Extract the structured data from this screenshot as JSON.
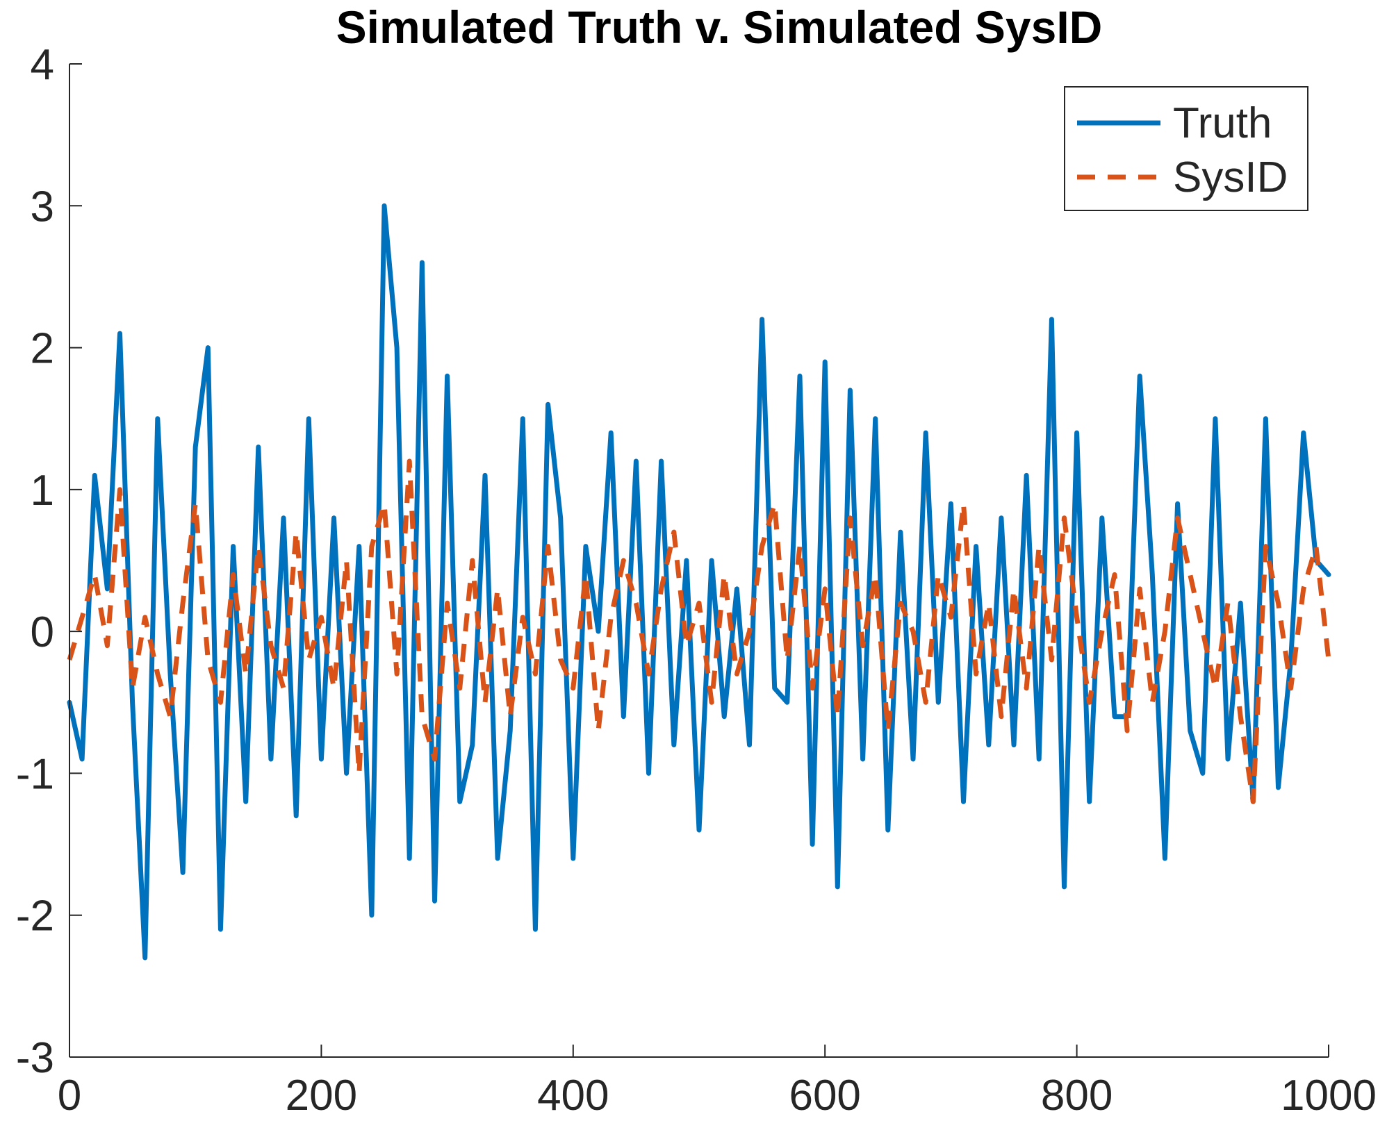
{
  "chart_data": {
    "type": "line",
    "title": "Simulated Truth v. Simulated SysID",
    "xlabel": "",
    "ylabel": "",
    "xlim": [
      0,
      1000
    ],
    "ylim": [
      -3,
      4
    ],
    "xticks": [
      0,
      200,
      400,
      600,
      800,
      1000
    ],
    "yticks": [
      -3,
      -2,
      -1,
      0,
      1,
      2,
      3,
      4
    ],
    "xtick_labels": [
      "0",
      "200",
      "400",
      "600",
      "800",
      "1000"
    ],
    "ytick_labels": [
      "-3",
      "-2",
      "-1",
      "0",
      "1",
      "2",
      "3",
      "4"
    ],
    "grid": false,
    "legend_position": "top-right",
    "series": [
      {
        "name": "Truth",
        "color": "#0072BD",
        "style": "solid",
        "x": [
          0,
          10,
          20,
          30,
          40,
          50,
          60,
          70,
          80,
          90,
          100,
          110,
          120,
          130,
          140,
          150,
          160,
          170,
          180,
          190,
          200,
          210,
          220,
          230,
          240,
          250,
          260,
          270,
          280,
          290,
          300,
          310,
          320,
          330,
          340,
          350,
          360,
          370,
          380,
          390,
          400,
          410,
          420,
          430,
          440,
          450,
          460,
          470,
          480,
          490,
          500,
          510,
          520,
          530,
          540,
          550,
          560,
          570,
          580,
          590,
          600,
          610,
          620,
          630,
          640,
          650,
          660,
          670,
          680,
          690,
          700,
          710,
          720,
          730,
          740,
          750,
          760,
          770,
          780,
          790,
          800,
          810,
          820,
          830,
          840,
          850,
          860,
          870,
          880,
          890,
          900,
          910,
          920,
          930,
          940,
          950,
          960,
          970,
          980,
          990,
          1000
        ],
        "y": [
          -0.5,
          -0.9,
          1.1,
          0.3,
          2.1,
          -0.5,
          -2.3,
          1.5,
          -0.3,
          -1.7,
          1.3,
          2.0,
          -2.1,
          0.6,
          -1.2,
          1.3,
          -0.9,
          0.8,
          -1.3,
          1.5,
          -0.9,
          0.8,
          -1.0,
          0.6,
          -2.0,
          3.0,
          2.0,
          -1.6,
          2.6,
          -1.9,
          1.8,
          -1.2,
          -0.8,
          1.1,
          -1.6,
          -0.7,
          1.5,
          -2.1,
          1.6,
          0.8,
          -1.6,
          0.6,
          0.0,
          1.4,
          -0.6,
          1.2,
          -1.0,
          1.2,
          -0.8,
          0.5,
          -1.4,
          0.5,
          -0.6,
          0.3,
          -0.8,
          2.2,
          -0.4,
          -0.5,
          1.8,
          -1.5,
          1.9,
          -1.8,
          1.7,
          -0.9,
          1.5,
          -1.4,
          0.7,
          -0.9,
          1.4,
          -0.5,
          0.9,
          -1.2,
          0.6,
          -0.8,
          0.8,
          -0.8,
          1.1,
          -0.9,
          2.2,
          -1.8,
          1.4,
          -1.2,
          0.8,
          -0.6,
          -0.6,
          1.8,
          0.4,
          -1.6,
          0.9,
          -0.7,
          -1.0,
          1.5,
          -0.9,
          0.2,
          -1.2,
          1.5,
          -1.1,
          -0.2,
          1.4,
          0.5,
          0.4
        ]
      },
      {
        "name": "SysID",
        "color": "#D95319",
        "style": "dashed",
        "x": [
          0,
          10,
          20,
          30,
          40,
          50,
          60,
          70,
          80,
          90,
          100,
          110,
          120,
          130,
          140,
          150,
          160,
          170,
          180,
          190,
          200,
          210,
          220,
          230,
          240,
          250,
          260,
          270,
          280,
          290,
          300,
          310,
          320,
          330,
          340,
          350,
          360,
          370,
          380,
          390,
          400,
          410,
          420,
          430,
          440,
          450,
          460,
          470,
          480,
          490,
          500,
          510,
          520,
          530,
          540,
          550,
          560,
          570,
          580,
          590,
          600,
          610,
          620,
          630,
          640,
          650,
          660,
          670,
          680,
          690,
          700,
          710,
          720,
          730,
          740,
          750,
          760,
          770,
          780,
          790,
          800,
          810,
          820,
          830,
          840,
          850,
          860,
          870,
          880,
          890,
          900,
          910,
          920,
          930,
          940,
          950,
          960,
          970,
          980,
          990,
          1000
        ],
        "y": [
          -0.2,
          0.1,
          0.4,
          -0.1,
          1.0,
          -0.4,
          0.1,
          -0.3,
          -0.6,
          0.2,
          0.9,
          -0.2,
          -0.5,
          0.4,
          -0.3,
          0.6,
          -0.1,
          -0.4,
          0.7,
          -0.2,
          0.1,
          -0.4,
          0.5,
          -1.0,
          0.6,
          0.9,
          -0.3,
          1.2,
          -0.6,
          -0.9,
          0.2,
          -0.4,
          0.5,
          -0.5,
          0.3,
          -0.6,
          0.1,
          -0.3,
          0.6,
          -0.2,
          -0.4,
          0.4,
          -0.7,
          0.1,
          0.5,
          0.2,
          -0.3,
          0.3,
          0.7,
          -0.1,
          0.2,
          -0.5,
          0.4,
          -0.3,
          0.0,
          0.6,
          0.9,
          -0.2,
          0.6,
          -0.4,
          0.3,
          -0.6,
          0.8,
          -0.1,
          0.4,
          -0.7,
          0.2,
          0.0,
          -0.5,
          0.4,
          0.1,
          0.9,
          -0.3,
          0.2,
          -0.6,
          0.3,
          -0.4,
          0.6,
          -0.2,
          0.8,
          0.1,
          -0.5,
          0.0,
          0.4,
          -0.7,
          0.3,
          -0.5,
          0.0,
          0.8,
          0.4,
          0.0,
          -0.4,
          0.2,
          -0.6,
          -1.2,
          0.6,
          0.2,
          -0.4,
          0.3,
          0.6,
          -0.2
        ]
      }
    ]
  }
}
